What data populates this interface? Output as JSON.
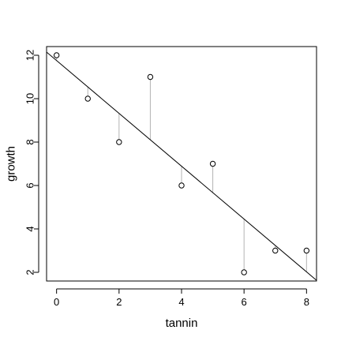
{
  "chart_data": {
    "type": "scatter",
    "title": "",
    "xlabel": "tannin",
    "ylabel": "growth",
    "xlim": [
      -0.32,
      8.32
    ],
    "ylim": [
      1.6,
      12.4
    ],
    "xticks": [
      0,
      2,
      4,
      6,
      8
    ],
    "yticks": [
      2,
      4,
      6,
      8,
      10,
      12
    ],
    "grid": false,
    "x": [
      0,
      1,
      2,
      3,
      4,
      5,
      6,
      7,
      8
    ],
    "y": [
      12,
      10,
      8,
      11,
      6,
      7,
      2,
      3,
      3
    ],
    "fit_line": {
      "intercept": 11.7556,
      "slope": -1.2167
    },
    "residual_lines": true,
    "colors": {
      "points": "#000000",
      "fit": "#000000",
      "residuals": "#b3b3b3",
      "frame": "#000000"
    }
  }
}
